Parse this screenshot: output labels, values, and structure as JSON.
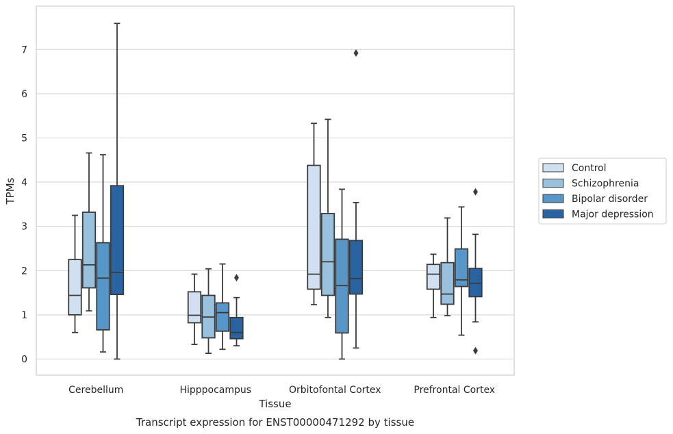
{
  "chart_data": {
    "type": "box",
    "xlabel": "Tissue",
    "ylabel": "TPMs",
    "caption": "Transcript expression for ENST00000471292 by tissue",
    "ylim": [
      -0.35,
      7.95
    ],
    "yticks": [
      0,
      1,
      2,
      3,
      4,
      5,
      6,
      7
    ],
    "grid": "horizontal",
    "legend_position": "right",
    "categories": [
      "Cerebellum",
      "Hipppocampus",
      "Orbitofontal Cortex",
      "Prefrontal Cortex"
    ],
    "series": [
      {
        "name": "Control",
        "color": "#d0e0f0",
        "boxes": [
          {
            "min": 0.6,
            "q1": 1.0,
            "median": 1.44,
            "q3": 2.25,
            "max": 3.25,
            "outliers": []
          },
          {
            "min": 0.33,
            "q1": 0.82,
            "median": 0.99,
            "q3": 1.52,
            "max": 1.92,
            "outliers": []
          },
          {
            "min": 1.23,
            "q1": 1.58,
            "median": 1.92,
            "q3": 4.38,
            "max": 5.33,
            "outliers": []
          },
          {
            "min": 0.94,
            "q1": 1.58,
            "median": 1.92,
            "q3": 2.14,
            "max": 2.37,
            "outliers": []
          }
        ]
      },
      {
        "name": "Schizophrenia",
        "color": "#99c0dd",
        "boxes": [
          {
            "min": 1.09,
            "q1": 1.61,
            "median": 2.13,
            "q3": 3.32,
            "max": 4.66,
            "outliers": []
          },
          {
            "min": 0.13,
            "q1": 0.48,
            "median": 0.95,
            "q3": 1.44,
            "max": 2.04,
            "outliers": []
          },
          {
            "min": 0.94,
            "q1": 1.44,
            "median": 2.2,
            "q3": 3.29,
            "max": 5.42,
            "outliers": []
          },
          {
            "min": 0.98,
            "q1": 1.24,
            "median": 1.47,
            "q3": 2.18,
            "max": 3.19,
            "outliers": []
          }
        ]
      },
      {
        "name": "Bipolar disorder",
        "color": "#5796c6",
        "boxes": [
          {
            "min": 0.16,
            "q1": 0.66,
            "median": 1.83,
            "q3": 2.63,
            "max": 4.62,
            "outliers": []
          },
          {
            "min": 0.22,
            "q1": 0.63,
            "median": 1.05,
            "q3": 1.27,
            "max": 2.15,
            "outliers": []
          },
          {
            "min": 0.0,
            "q1": 0.59,
            "median": 1.66,
            "q3": 2.71,
            "max": 3.84,
            "outliers": []
          },
          {
            "min": 0.54,
            "q1": 1.64,
            "median": 1.79,
            "q3": 2.49,
            "max": 3.44,
            "outliers": []
          }
        ]
      },
      {
        "name": "Major depression",
        "color": "#2a63a2",
        "boxes": [
          {
            "min": 0.0,
            "q1": 1.46,
            "median": 1.96,
            "q3": 3.92,
            "max": 7.59,
            "outliers": []
          },
          {
            "min": 0.3,
            "q1": 0.46,
            "median": 0.6,
            "q3": 0.94,
            "max": 1.39,
            "outliers": [
              1.84
            ]
          },
          {
            "min": 0.25,
            "q1": 1.47,
            "median": 1.82,
            "q3": 2.68,
            "max": 3.54,
            "outliers": [
              6.92
            ]
          },
          {
            "min": 0.84,
            "q1": 1.41,
            "median": 1.71,
            "q3": 2.05,
            "max": 2.82,
            "outliers": [
              3.78,
              0.19
            ]
          }
        ]
      }
    ]
  }
}
